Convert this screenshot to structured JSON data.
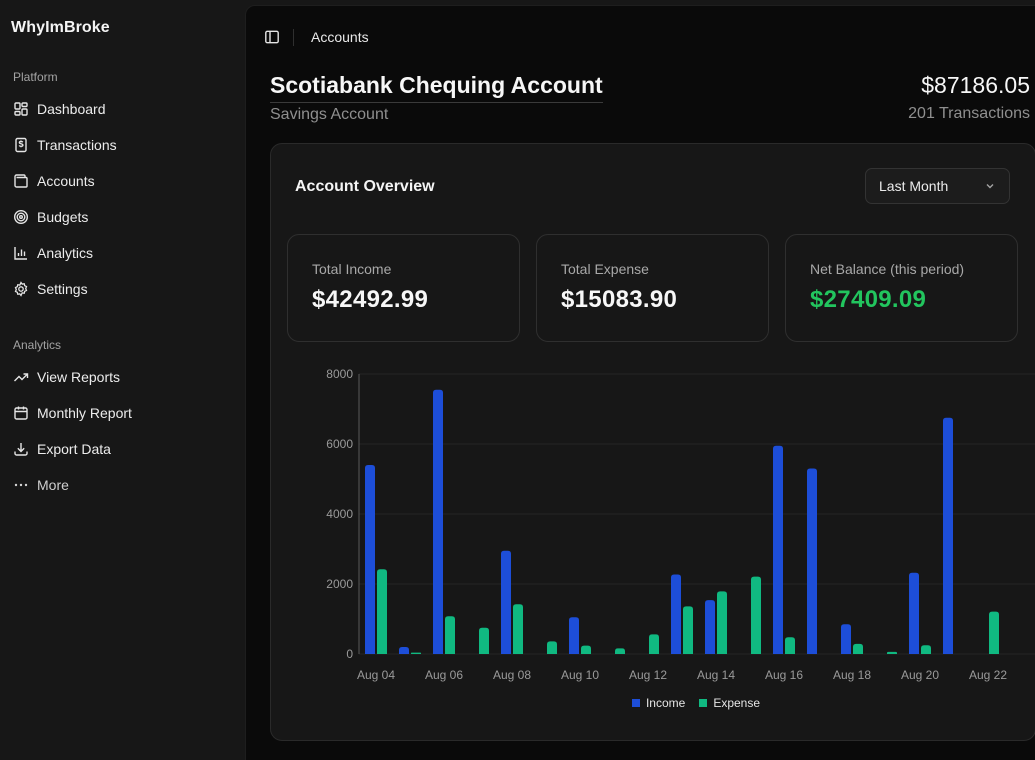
{
  "app": {
    "name": "WhyImBroke"
  },
  "sidebar": {
    "groups": [
      {
        "label": "Platform",
        "items": [
          {
            "label": "Dashboard",
            "icon": "dashboard-icon"
          },
          {
            "label": "Transactions",
            "icon": "receipt-icon"
          },
          {
            "label": "Accounts",
            "icon": "wallet-icon"
          },
          {
            "label": "Budgets",
            "icon": "target-icon"
          },
          {
            "label": "Analytics",
            "icon": "bar-chart-icon"
          },
          {
            "label": "Settings",
            "icon": "gear-icon"
          }
        ]
      },
      {
        "label": "Analytics",
        "items": [
          {
            "label": "View Reports",
            "icon": "trending-up-icon"
          },
          {
            "label": "Monthly Report",
            "icon": "calendar-icon"
          },
          {
            "label": "Export Data",
            "icon": "download-icon"
          },
          {
            "label": "More",
            "icon": "more-dots-icon"
          }
        ]
      }
    ]
  },
  "header": {
    "breadcrumb": "Accounts"
  },
  "account": {
    "name": "Scotiabank Chequing Account",
    "type": "Savings Account",
    "balance": "$87186.05",
    "transactions": "201 Transactions"
  },
  "overview": {
    "title": "Account Overview",
    "period": "Last Month",
    "stats": [
      {
        "label": "Total Income",
        "value": "$42492.99"
      },
      {
        "label": "Total Expense",
        "value": "$15083.90"
      },
      {
        "label": "Net Balance (this period)",
        "value": "$27409.09"
      }
    ]
  },
  "colors": {
    "income": "#1d4ed8",
    "expense": "#10b981",
    "positive": "#22c55e"
  },
  "chart_data": {
    "type": "bar",
    "categories": [
      "Aug 04",
      "Aug 05",
      "Aug 06",
      "Aug 07",
      "Aug 08",
      "Aug 09",
      "Aug 10",
      "Aug 11",
      "Aug 12",
      "Aug 13",
      "Aug 14",
      "Aug 15",
      "Aug 16",
      "Aug 17",
      "Aug 18",
      "Aug 19",
      "Aug 20",
      "Aug 21",
      "Aug 22"
    ],
    "tick_labels": [
      "Aug 04",
      "Aug 06",
      "Aug 08",
      "Aug 10",
      "Aug 12",
      "Aug 14",
      "Aug 16",
      "Aug 18",
      "Aug 20",
      "Aug 22"
    ],
    "series": [
      {
        "name": "Income",
        "color": "#1d4ed8",
        "values": [
          5400,
          200,
          7550,
          0,
          2950,
          0,
          1050,
          0,
          0,
          2270,
          1540,
          0,
          5950,
          5300,
          850,
          0,
          2320,
          6750,
          0
        ]
      },
      {
        "name": "Expense",
        "color": "#10b981",
        "values": [
          2420,
          40,
          1080,
          750,
          1420,
          360,
          240,
          160,
          560,
          1360,
          1790,
          2210,
          480,
          0,
          290,
          60,
          250,
          0,
          1210
        ]
      }
    ],
    "ylim": [
      0,
      8000
    ],
    "yticks": [
      0,
      2000,
      4000,
      6000,
      8000
    ],
    "legend": "bottom-center",
    "grid": true
  }
}
